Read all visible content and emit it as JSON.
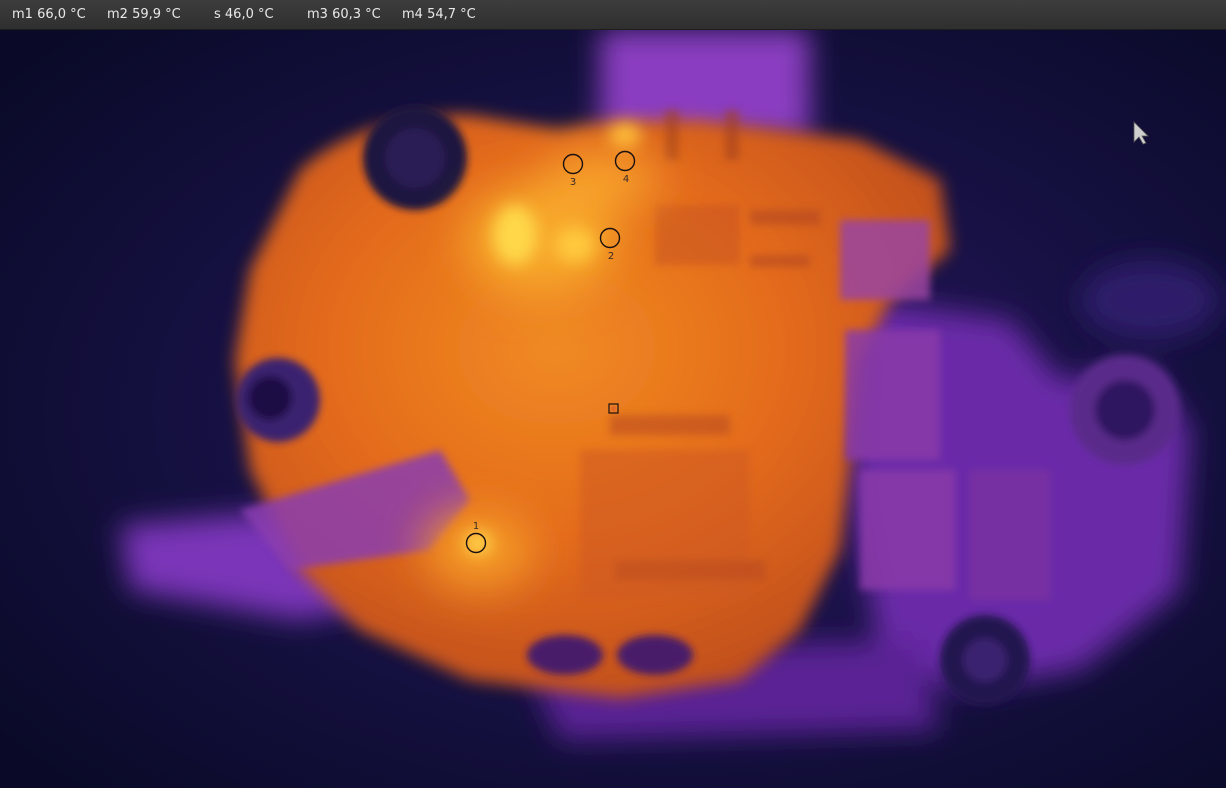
{
  "toolbar": {
    "m1": "m1 66,0 °C",
    "m2": "m2 59,9 °C",
    "s": "s 46,0 °C",
    "m3": "m3 60,3 °C",
    "m4": "m4 54,7 °C"
  },
  "markers": {
    "m1_label": "1",
    "m2_label": "2",
    "m3_label": "3",
    "m4_label": "4"
  },
  "icons": {
    "marker": "circle-marker-icon",
    "spot": "square-spot-icon",
    "cursor": "mouse-pointer-icon"
  },
  "colors": {
    "toolbar_bg": "#333333",
    "toolbar_text": "#e8e8e8",
    "cold": "#0b0a2a",
    "mid": "#6a28b0",
    "warm": "#e06a1a",
    "hot": "#ffd23a"
  }
}
